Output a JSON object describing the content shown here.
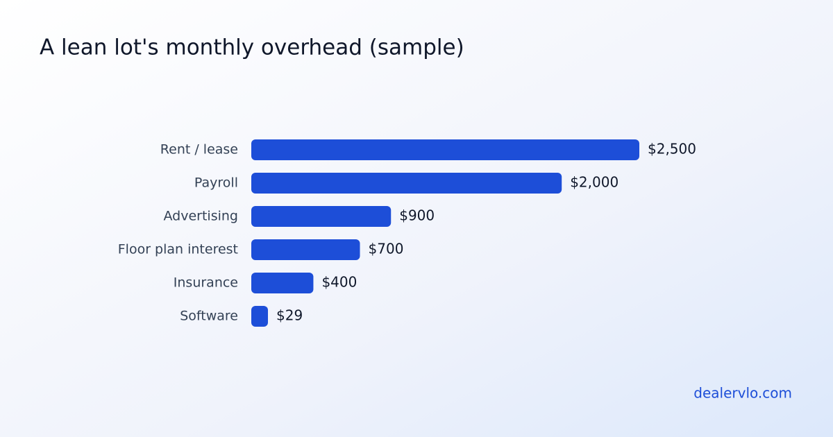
{
  "chart_data": {
    "type": "bar",
    "orientation": "horizontal",
    "title": "A lean lot's monthly overhead (sample)",
    "categories": [
      "Rent / lease",
      "Payroll",
      "Advertising",
      "Floor plan interest",
      "Insurance",
      "Software"
    ],
    "values": [
      2500,
      2000,
      900,
      700,
      400,
      29
    ],
    "value_labels": [
      "$2,500",
      "$2,000",
      "$900",
      "$700",
      "$400",
      "$29"
    ],
    "color": "#1d4ed8",
    "source": "dealervlo.com"
  }
}
